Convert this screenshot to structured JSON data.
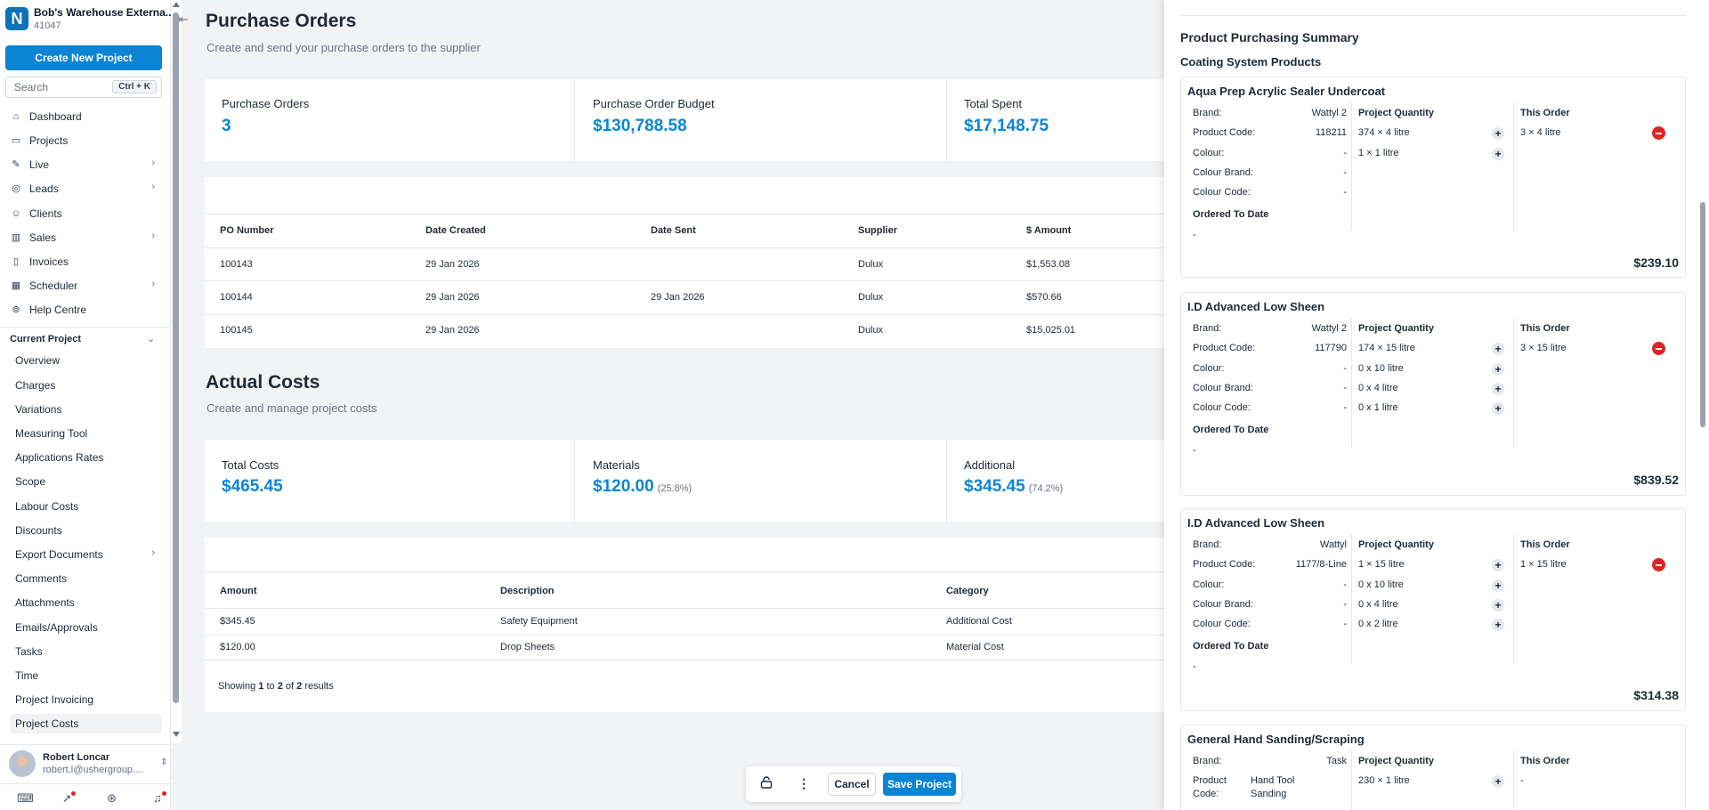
{
  "workspace": {
    "name": "Bob's Warehouse Externa...",
    "id": "41047",
    "logo_letter": "N"
  },
  "sidebar": {
    "create_label": "Create New Project",
    "search_placeholder": "Search",
    "search_shortcut": "Ctrl + K",
    "nav": [
      {
        "label": "Dashboard",
        "icon": "home-icon"
      },
      {
        "label": "Projects",
        "icon": "folder-icon"
      },
      {
        "label": "Live",
        "icon": "live-icon",
        "chevron": true
      },
      {
        "label": "Leads",
        "icon": "leads-icon",
        "chevron": true
      },
      {
        "label": "Clients",
        "icon": "users-icon"
      },
      {
        "label": "Sales",
        "icon": "chart-icon",
        "chevron": true
      },
      {
        "label": "Invoices",
        "icon": "document-icon"
      },
      {
        "label": "Scheduler",
        "icon": "calendar-icon",
        "chevron": true
      },
      {
        "label": "Help Centre",
        "icon": "help-icon"
      }
    ],
    "current_project_label": "Current Project",
    "project_items": [
      {
        "label": "Overview"
      },
      {
        "label": "Charges"
      },
      {
        "label": "Variations"
      },
      {
        "label": "Measuring Tool"
      },
      {
        "label": "Applications Rates"
      },
      {
        "label": "Scope"
      },
      {
        "label": "Labour Costs"
      },
      {
        "label": "Discounts"
      },
      {
        "label": "Export Documents",
        "chevron": true
      },
      {
        "label": "Comments"
      },
      {
        "label": "Attachments"
      },
      {
        "label": "Emails/Approvals"
      },
      {
        "label": "Tasks"
      },
      {
        "label": "Time"
      },
      {
        "label": "Project Invoicing"
      },
      {
        "label": "Project Costs",
        "active": true
      }
    ],
    "user": {
      "name": "Robert Loncar",
      "email": "robert.l@ushergroup...."
    }
  },
  "purchase_orders": {
    "title": "Purchase Orders",
    "subtitle": "Create and send your purchase orders to the supplier",
    "stats": [
      {
        "label": "Purchase Orders",
        "value": "3"
      },
      {
        "label": "Purchase Order Budget",
        "value": "$130,788.58"
      },
      {
        "label": "Total Spent",
        "value": "$17,148.75"
      }
    ],
    "columns": [
      "PO Number",
      "Date Created",
      "Date Sent",
      "Supplier",
      "$ Amount"
    ],
    "rows": [
      [
        "100143",
        "29 Jan 2026",
        "",
        "Dulux",
        "$1,553.08"
      ],
      [
        "100144",
        "29 Jan 2026",
        "29 Jan 2026",
        "Dulux",
        "$570.66"
      ],
      [
        "100145",
        "29 Jan 2026",
        "",
        "Dulux",
        "$15,025.01"
      ]
    ]
  },
  "actual_costs": {
    "title": "Actual Costs",
    "subtitle": "Create and manage project costs",
    "stats": [
      {
        "label": "Total Costs",
        "value": "$465.45",
        "pct": ""
      },
      {
        "label": "Materials",
        "value": "$120.00",
        "pct": "(25.8%)"
      },
      {
        "label": "Additional",
        "value": "$345.45",
        "pct": "(74.2%)"
      }
    ],
    "columns": [
      "Amount",
      "Description",
      "Category"
    ],
    "rows": [
      [
        "$345.45",
        "Safety Equipment",
        "Additional Cost"
      ],
      [
        "$120.00",
        "Drop Sheets",
        "Material Cost"
      ]
    ],
    "results": {
      "prefix": "Showing",
      "from": "1",
      "to_word": "to",
      "to": "2",
      "of_word": "of",
      "total": "2",
      "suffix": "results"
    }
  },
  "actionbar": {
    "cancel": "Cancel",
    "save": "Save Project"
  },
  "panel": {
    "title": "Product Purchasing Summary",
    "group": "Coating System Products",
    "labels": {
      "brand": "Brand:",
      "product_code": "Product Code:",
      "product": "Product",
      "code": "Code:",
      "colour": "Colour:",
      "colour_brand": "Colour Brand:",
      "colour_code": "Colour Code:",
      "ordered_to_date": "Ordered To Date",
      "project_quantity": "Project Quantity",
      "this_order": "This Order"
    },
    "products": [
      {
        "name": "Aqua Prep Acrylic Sealer Undercoat",
        "brand": "Wattyl 2",
        "product_code": "118211",
        "colour": "-",
        "colour_brand": "-",
        "colour_code": "-",
        "ordered": "-",
        "quantities": [
          "374 × 4 litre",
          "1 × 1 litre"
        ],
        "order": "3 × 4 litre",
        "total": "$239.10"
      },
      {
        "name": "I.D Advanced Low Sheen",
        "brand": "Wattyl 2",
        "product_code": "117790",
        "colour": "-",
        "colour_brand": "-",
        "colour_code": "-",
        "ordered": "-",
        "quantities": [
          "174 × 15 litre",
          "0 x 10 litre",
          "0 x 4 litre",
          "0 x 1 litre"
        ],
        "order": "3 × 15 litre",
        "total": "$839.52"
      },
      {
        "name": "I.D Advanced Low Sheen",
        "brand": "Wattyl",
        "product_code": "1177/8-Line",
        "colour": "-",
        "colour_brand": "-",
        "colour_code": "-",
        "ordered": "-",
        "quantities": [
          "1 × 15 litre",
          "0 x 10 litre",
          "0 x 4 litre",
          "0 x 2 litre"
        ],
        "order": "1 × 15 litre",
        "total": "$314.38"
      },
      {
        "name": "General Hand Sanding/Scraping",
        "brand": "Task",
        "product_code_l1": "Hand Tool",
        "product_code_l2": "Sanding",
        "quantities": [
          "230 × 1 litre"
        ],
        "order": "-"
      }
    ]
  }
}
